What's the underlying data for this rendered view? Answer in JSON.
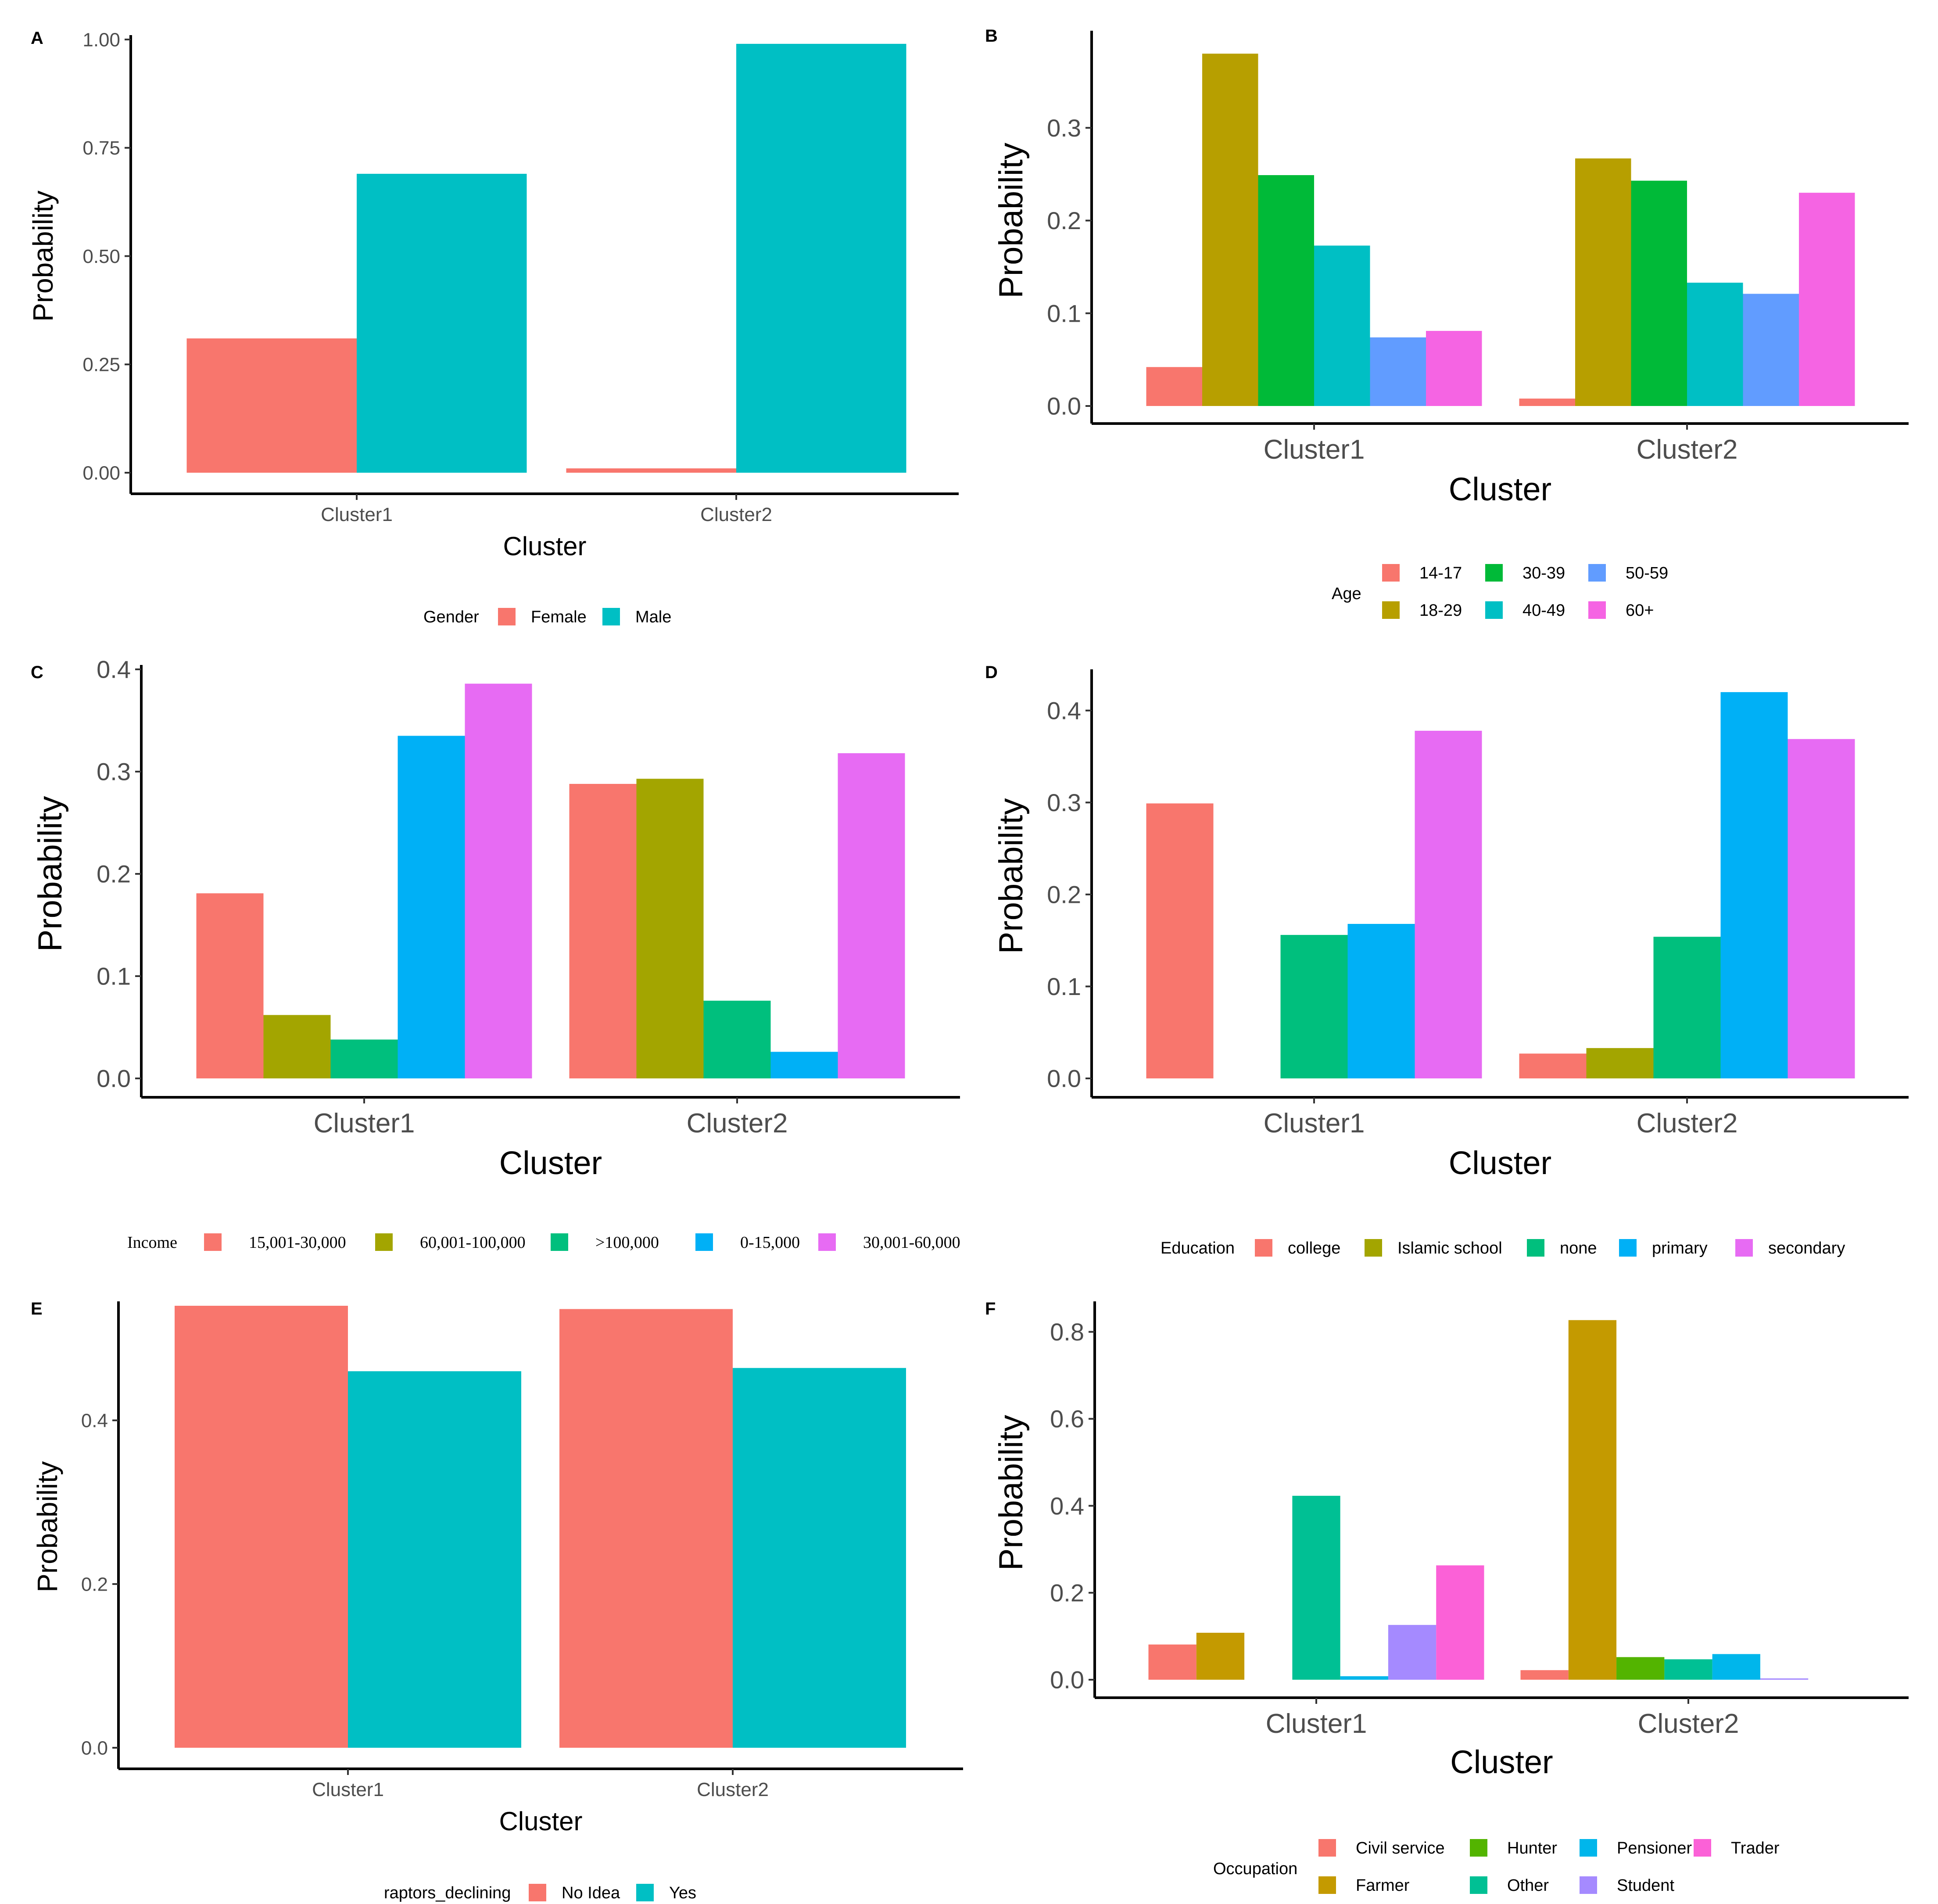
{
  "figure": {
    "description_free": true
  },
  "chart_data": [
    {
      "panel": "A",
      "type": "bar",
      "xlabel": "Cluster",
      "ylabel": "Probability",
      "categories": [
        "Cluster1",
        "Cluster2"
      ],
      "ylim": [
        0,
        1.0
      ],
      "yticks": [
        "0.00",
        "0.25",
        "0.50",
        "0.75",
        "1.00"
      ],
      "yticks_values": [
        0,
        0.25,
        0.5,
        0.75,
        1.0
      ],
      "legend_title": "Gender",
      "legend_position": "bottom",
      "series": [
        {
          "name": "Female",
          "color": "#F8766D",
          "values": [
            0.31,
            0.01
          ]
        },
        {
          "name": "Male",
          "color": "#00BFC4",
          "values": [
            0.69,
            0.99
          ]
        }
      ]
    },
    {
      "panel": "B",
      "type": "bar",
      "xlabel": "Cluster",
      "ylabel": "Probability",
      "categories": [
        "Cluster1",
        "Cluster2"
      ],
      "ylim": [
        0,
        0.4
      ],
      "yticks": [
        "0.0",
        "0.1",
        "0.2",
        "0.3"
      ],
      "yticks_values": [
        0,
        0.1,
        0.2,
        0.3
      ],
      "legend_title": "Age",
      "legend_position": "bottom",
      "series": [
        {
          "name": "14-17",
          "color": "#F8766D",
          "values": [
            0.042,
            0.008
          ]
        },
        {
          "name": "18-29",
          "color": "#B79F00",
          "values": [
            0.38,
            0.267
          ]
        },
        {
          "name": "30-39",
          "color": "#00BA38",
          "values": [
            0.249,
            0.243
          ]
        },
        {
          "name": "40-49",
          "color": "#00BFC4",
          "values": [
            0.173,
            0.133
          ]
        },
        {
          "name": "50-59",
          "color": "#619CFF",
          "values": [
            0.074,
            0.121
          ]
        },
        {
          "name": "60+",
          "color": "#F564E3",
          "values": [
            0.081,
            0.23
          ]
        }
      ]
    },
    {
      "panel": "C",
      "type": "bar",
      "xlabel": "Cluster",
      "ylabel": "Probability",
      "categories": [
        "Cluster1",
        "Cluster2"
      ],
      "ylim": [
        0,
        0.4
      ],
      "yticks": [
        "0.0",
        "0.1",
        "0.2",
        "0.3",
        "0.4"
      ],
      "yticks_values": [
        0,
        0.1,
        0.2,
        0.3,
        0.4
      ],
      "legend_title": "Income",
      "legend_position": "bottom",
      "series": [
        {
          "name": "15,001-30,000",
          "color": "#F8766D",
          "values": [
            0.181,
            0.288
          ]
        },
        {
          "name": "60,001-100,000",
          "color": "#A3A500",
          "values": [
            0.062,
            0.293
          ]
        },
        {
          "name": ">100,000",
          "color": "#00BF7D",
          "values": [
            0.038,
            0.076
          ]
        },
        {
          "name": "0-15,000",
          "color": "#00B0F6",
          "values": [
            0.335,
            0.026
          ]
        },
        {
          "name": "30,001-60,000",
          "color": "#E76BF3",
          "values": [
            0.386,
            0.318
          ]
        }
      ]
    },
    {
      "panel": "D",
      "type": "bar",
      "xlabel": "Cluster",
      "ylabel": "Probability",
      "categories": [
        "Cluster1",
        "Cluster2"
      ],
      "ylim": [
        0,
        0.44
      ],
      "yticks": [
        "0.0",
        "0.1",
        "0.2",
        "0.3",
        "0.4"
      ],
      "yticks_values": [
        0,
        0.1,
        0.2,
        0.3,
        0.4
      ],
      "legend_title": "Education",
      "legend_position": "bottom",
      "series": [
        {
          "name": "college",
          "color": "#F8766D",
          "values": [
            0.299,
            0.027
          ]
        },
        {
          "name": "Islamic school",
          "color": "#A3A500",
          "values": [
            0.0,
            0.033
          ]
        },
        {
          "name": "none",
          "color": "#00BF7D",
          "values": [
            0.156,
            0.154
          ]
        },
        {
          "name": "primary",
          "color": "#00B0F6",
          "values": [
            0.168,
            0.42
          ]
        },
        {
          "name": "secondary",
          "color": "#E76BF3",
          "values": [
            0.378,
            0.369
          ]
        }
      ]
    },
    {
      "panel": "E",
      "type": "bar",
      "xlabel": "Cluster",
      "ylabel": "Probability",
      "categories": [
        "Cluster1",
        "Cluster2"
      ],
      "ylim": [
        0,
        0.54
      ],
      "yticks": [
        "0.0",
        "0.2",
        "0.4"
      ],
      "yticks_values": [
        0,
        0.2,
        0.4
      ],
      "legend_title": "raptors_declining",
      "legend_position": "bottom",
      "series": [
        {
          "name": "No Idea",
          "color": "#F8766D",
          "values": [
            0.54,
            0.536
          ]
        },
        {
          "name": "Yes",
          "color": "#00BFC4",
          "values": [
            0.46,
            0.464
          ]
        }
      ]
    },
    {
      "panel": "F",
      "type": "bar",
      "xlabel": "Cluster",
      "ylabel": "Probability",
      "categories": [
        "Cluster1",
        "Cluster2"
      ],
      "ylim": [
        0,
        0.86
      ],
      "yticks": [
        "0.0",
        "0.2",
        "0.4",
        "0.6",
        "0.8"
      ],
      "yticks_values": [
        0,
        0.2,
        0.4,
        0.6,
        0.8
      ],
      "legend_title": "Occupation",
      "legend_position": "bottom",
      "series": [
        {
          "name": "Civil service",
          "color": "#F8766D",
          "values": [
            0.081,
            0.022
          ]
        },
        {
          "name": "Farmer",
          "color": "#C49A00",
          "values": [
            0.108,
            0.827
          ]
        },
        {
          "name": "Hunter",
          "color": "#53B400",
          "values": [
            0.0,
            0.052
          ]
        },
        {
          "name": "Other",
          "color": "#00C094",
          "values": [
            0.423,
            0.047
          ]
        },
        {
          "name": "Pensioner",
          "color": "#00B6EB",
          "values": [
            0.008,
            0.059
          ]
        },
        {
          "name": "Student",
          "color": "#A58AFF",
          "values": [
            0.126,
            0.003
          ]
        },
        {
          "name": "Trader",
          "color": "#FB61D7",
          "values": [
            0.263,
            0.0
          ]
        }
      ]
    }
  ]
}
